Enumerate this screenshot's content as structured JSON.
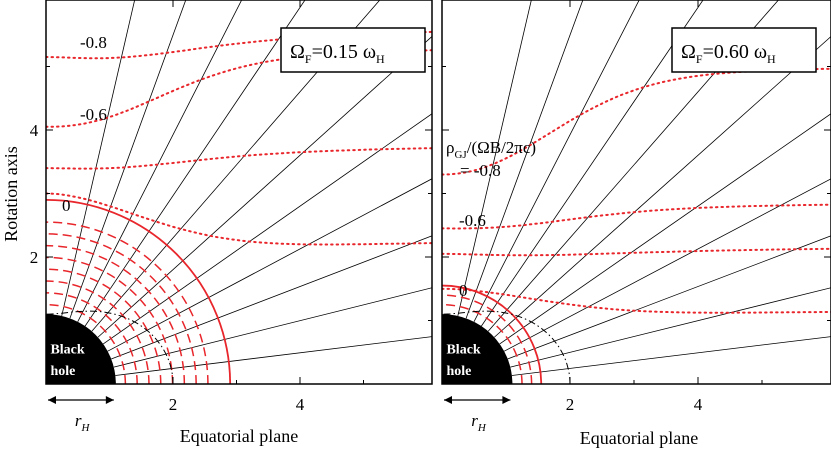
{
  "chart_data": [
    {
      "type": "line",
      "panel": "left",
      "annotation": "Ω_F = 0.15 ω_H",
      "omega_ratio": 0.15,
      "xlabel": "Equatorial plane",
      "ylabel": "Rotation axis",
      "xticks": [
        "2",
        "4"
      ],
      "yticks": [
        "2",
        "4"
      ],
      "xlim": [
        0,
        6.1
      ],
      "ylim": [
        0,
        6.0
      ],
      "horizon_radius": 1.1,
      "horizon_label": [
        "Black",
        "hole"
      ],
      "horizon_scale_label": "r",
      "horizon_scale_subscript": "H",
      "colors": {
        "field_lines": "#000000",
        "charge_contours": "#e8262b"
      },
      "field_line_angles_deg": [
        7,
        14,
        21,
        28,
        35,
        42,
        49,
        56,
        63,
        70,
        77
      ],
      "series": [
        {
          "contour_level": -0.8,
          "label": "-0.8",
          "style": "dotted",
          "z0": 5.15,
          "z_eq": 5.6
        },
        {
          "contour_level": -0.6,
          "label": "-0.6",
          "style": "dotted",
          "z0": 4.05,
          "z_eq": 5.3
        },
        {
          "contour_level": -0.4,
          "style": "dotted",
          "z0": 3.4,
          "z_eq": 3.75
        },
        {
          "contour_level": -0.2,
          "style": "dotted",
          "z0": 3.0,
          "z_eq": 2.25
        },
        {
          "contour_level": 0,
          "label": "0",
          "style": "solid",
          "radius": 2.9
        }
      ],
      "dashed_contours": {
        "count": 8,
        "min_radius": 1.25,
        "max_radius": 2.55
      }
    },
    {
      "type": "line",
      "panel": "right",
      "annotation": "Ω_F = 0.60 ω_H",
      "omega_ratio": 0.6,
      "xlabel": "Equatorial plane",
      "ylabel": "",
      "xticks": [
        "2",
        "4"
      ],
      "yticks": [],
      "xlim": [
        0,
        6.1
      ],
      "ylim": [
        0,
        6.0
      ],
      "horizon_radius": 1.1,
      "horizon_label": [
        "Black",
        "hole"
      ],
      "horizon_scale_label": "r",
      "horizon_scale_subscript": "H",
      "colors": {
        "field_lines": "#000000",
        "charge_contours": "#e8262b"
      },
      "field_line_angles_deg": [
        7,
        14,
        21,
        28,
        35,
        42,
        49,
        56,
        63,
        70,
        77
      ],
      "density_label": [
        "ρ_GJ/(ΩB/2πc)",
        "= -0.8"
      ],
      "series": [
        {
          "contour_level": -0.8,
          "label": "-0.8",
          "style": "dotted",
          "z0": 3.3,
          "z_eq": 5.0
        },
        {
          "contour_level": -0.6,
          "label": "-0.6",
          "style": "dotted",
          "z0": 2.45,
          "z_eq": 2.85
        },
        {
          "contour_level": -0.4,
          "style": "dotted",
          "z0": 2.05,
          "z_eq": 2.15
        },
        {
          "contour_level": -0.2,
          "style": "dotted",
          "z0": 1.5,
          "z_eq": 1.15
        },
        {
          "contour_level": 0,
          "label": "0",
          "style": "solid",
          "radius": 1.55
        }
      ],
      "dashed_contours": {
        "count": 2,
        "min_radius": 1.25,
        "max_radius": 1.4
      }
    }
  ]
}
